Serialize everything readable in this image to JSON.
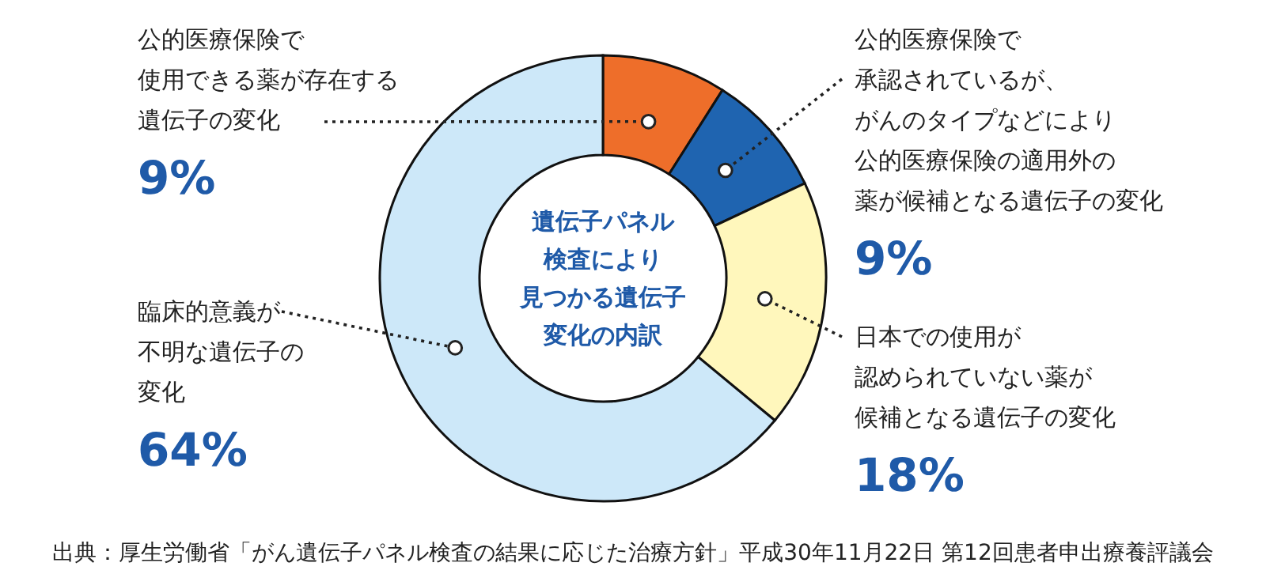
{
  "chart_data": {
    "type": "donut",
    "title": "遺伝子パネル検査により見つかる遺伝子変化の内訳",
    "categories": [
      "公的医療保険で使用できる薬が存在する遺伝子の変化",
      "公的医療保険で承認されているが、がんのタイプなどにより公的医療保険の適用外の薬が候補となる遺伝子の変化",
      "日本での使用が認められていない薬が候補となる遺伝子の変化",
      "臨床的意義が不明な遺伝子の変化"
    ],
    "values": [
      9,
      9,
      18,
      64
    ],
    "colors": [
      "#ee6e2a",
      "#1f64b0",
      "#fff7bc",
      "#cde8f9"
    ],
    "value_labels": [
      "9%",
      "9%",
      "18%",
      "64%"
    ],
    "annotations": [
      "出典：厚生労働省「がん遺伝子パネル検査の結果に応じた治療方針」平成30年11月22日 第12回患者申出療養評議会"
    ]
  }
}
